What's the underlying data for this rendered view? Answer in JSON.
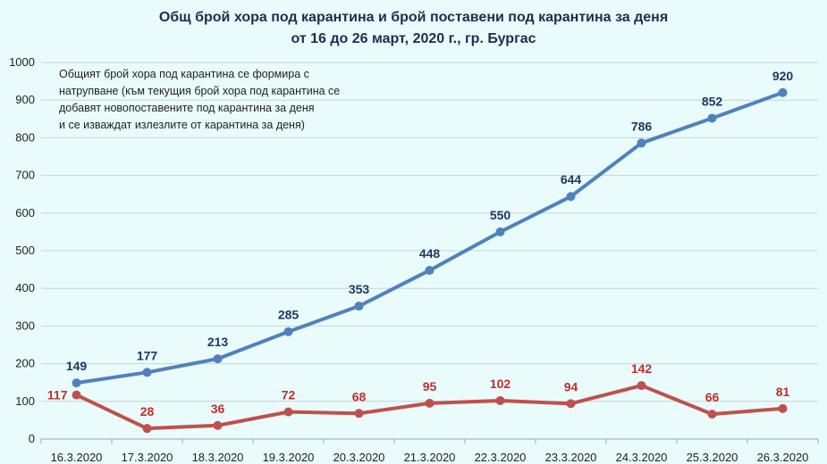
{
  "chart_data": {
    "type": "line",
    "title_line1": "Общ брой хора под карантина и брой поставени под карантина за деня",
    "title_line2": "от 16 до 26 март, 2020 г., гр. Бургас",
    "annotation": [
      "Общият брой хора под карантина се формира с",
      "натрупване (към текущия брой хора под карантина се",
      "добавят новопоставените под карантина за деня",
      "и се изваждат излезлите от карантина за деня)"
    ],
    "categories": [
      "16.3.2020",
      "17.3.2020",
      "18.3.2020",
      "19.3.2020",
      "20.3.2020",
      "21.3.2020",
      "22.3.2020",
      "23.3.2020",
      "24.3.2020",
      "25.3.2020",
      "26.3.2020"
    ],
    "series": [
      {
        "values": [
          149,
          177,
          213,
          285,
          353,
          448,
          550,
          644,
          786,
          852,
          920
        ],
        "color": "#4f81bd",
        "label_color": "#1f3864"
      },
      {
        "values": [
          117,
          28,
          36,
          72,
          68,
          95,
          102,
          94,
          142,
          66,
          81
        ],
        "color": "#c0504d",
        "label_color": "#c0302b"
      }
    ],
    "ylim": [
      0,
      1000
    ],
    "yticks": [
      "0",
      "100",
      "200",
      "300",
      "400",
      "500",
      "600",
      "700",
      "800",
      "900",
      "1000"
    ],
    "grid": true
  }
}
